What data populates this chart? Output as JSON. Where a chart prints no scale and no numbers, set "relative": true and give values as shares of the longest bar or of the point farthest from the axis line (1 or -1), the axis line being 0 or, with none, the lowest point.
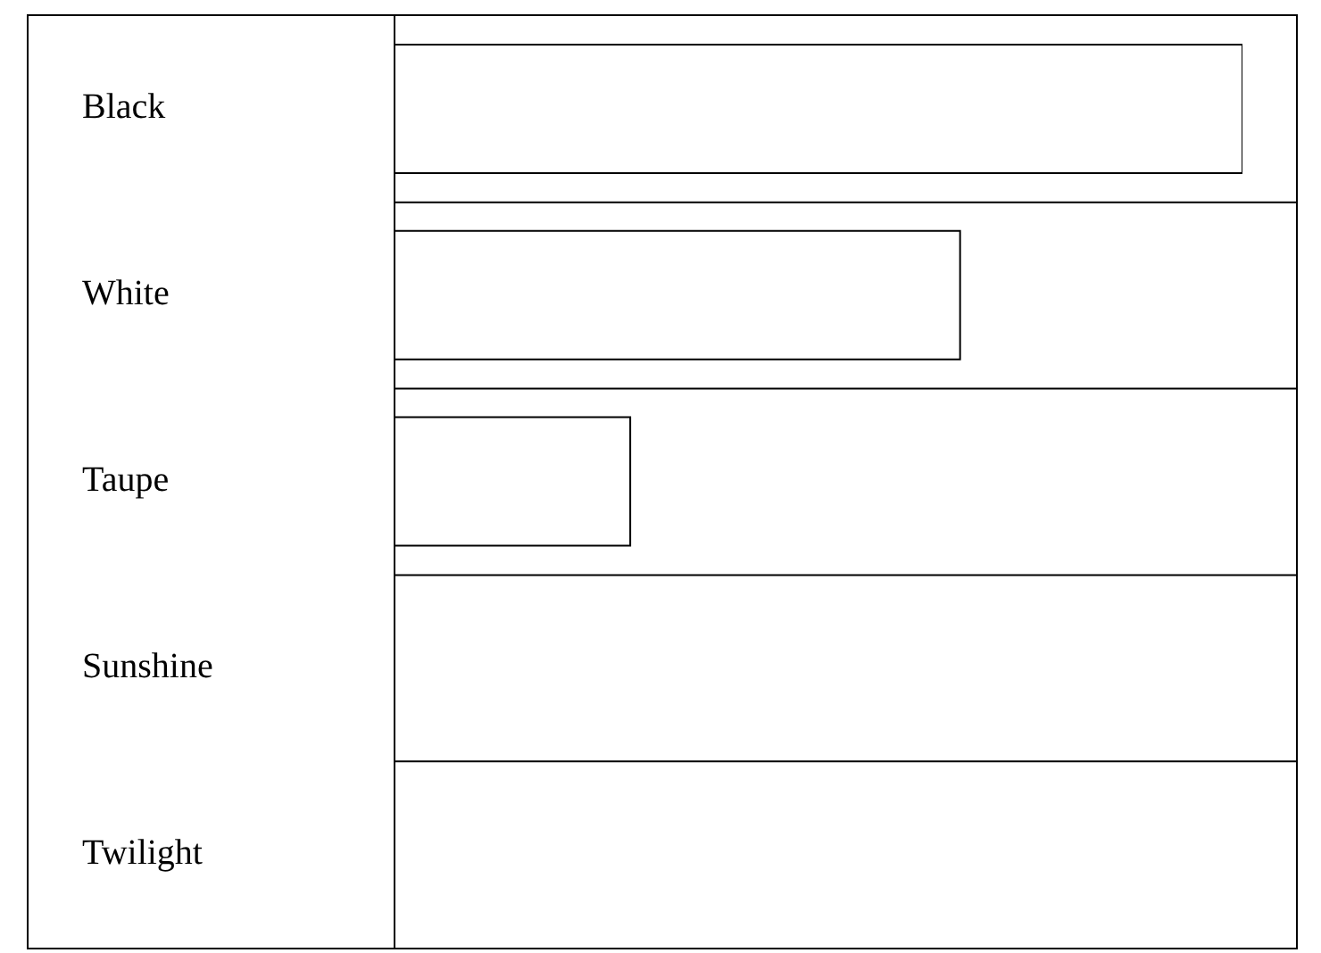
{
  "chart_data": {
    "type": "bar",
    "orientation": "horizontal",
    "relative": true,
    "categories": [
      "Black",
      "White",
      "Taupe",
      "Sunshine",
      "Twilight"
    ],
    "values": [
      1,
      0.667,
      0.278,
      0,
      0
    ],
    "color": "#ffffff",
    "grid": "y"
  }
}
